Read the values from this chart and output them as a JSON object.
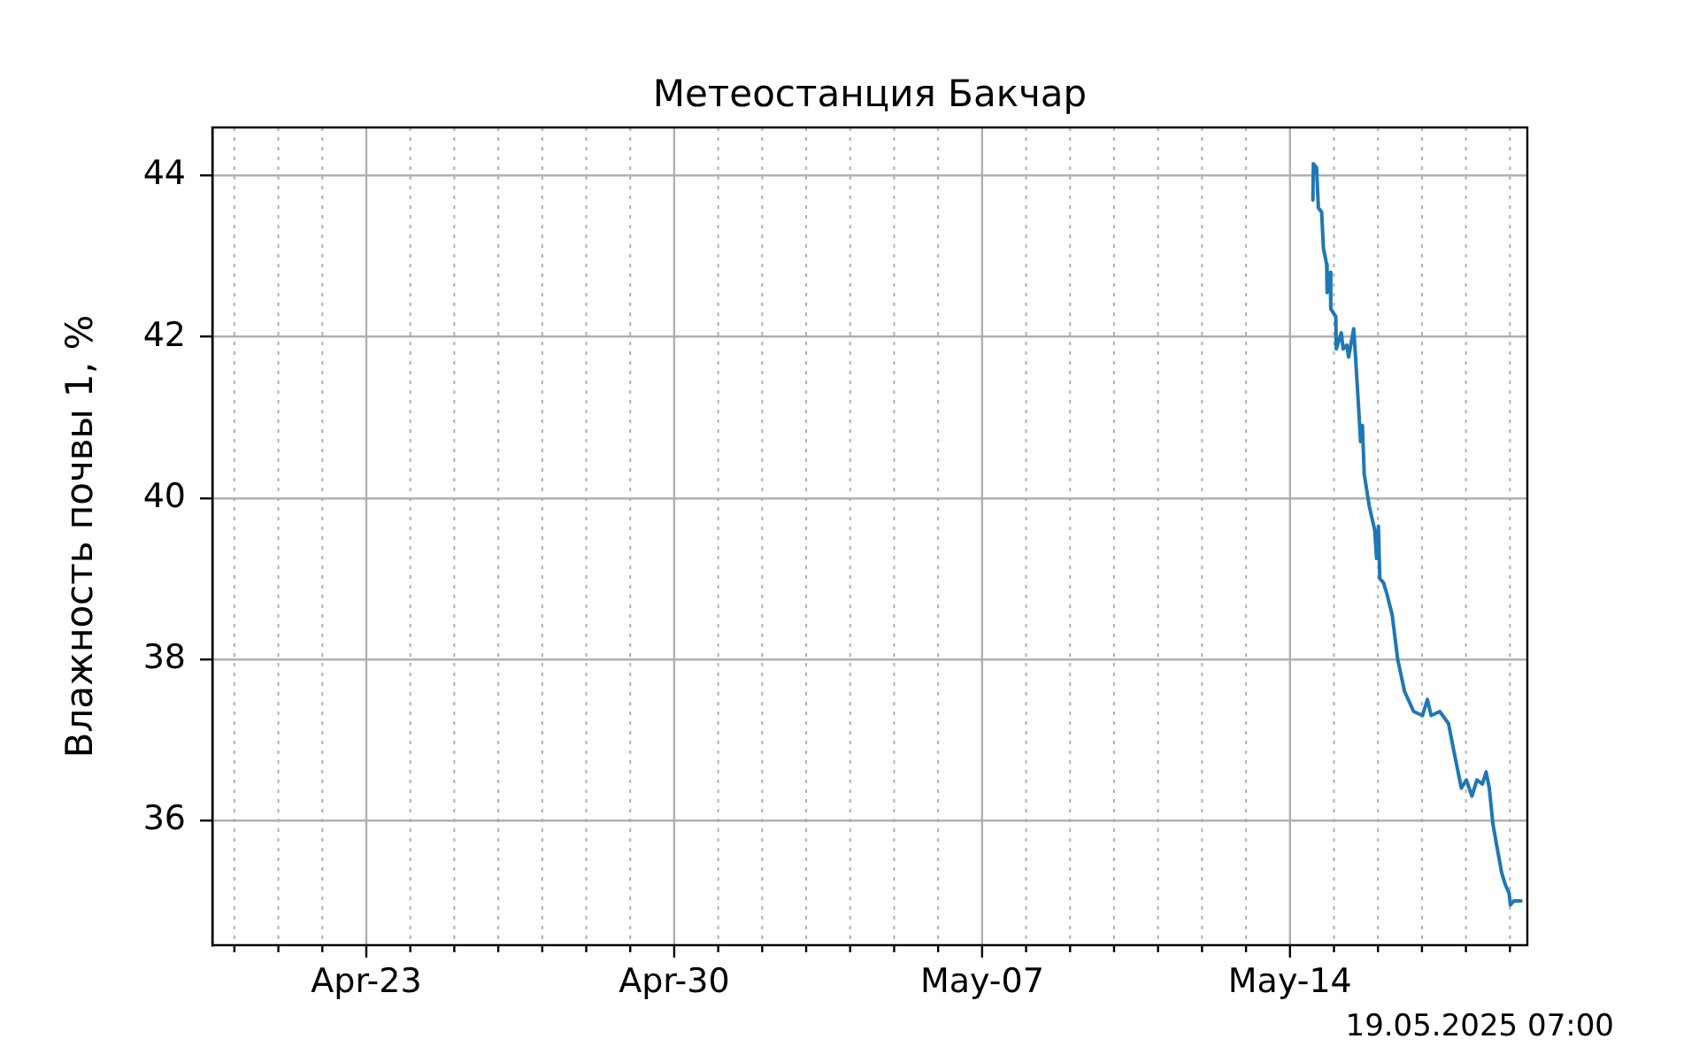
{
  "chart_data": {
    "type": "line",
    "title": "Метеостанция Бакчар",
    "ylabel": "Влажность почвы 1, %",
    "annotations": [
      "19.05.2025 07:00"
    ],
    "x": [
      "2025-05-14T12:30",
      "2025-05-14T12:45",
      "2025-05-14T14:30",
      "2025-05-14T15:30",
      "2025-05-14T17:15",
      "2025-05-14T18:15",
      "2025-05-14T20:00",
      "2025-05-14T20:15",
      "2025-05-14T22:00",
      "2025-05-14T22:15",
      "2025-05-15T01:00",
      "2025-05-15T01:15",
      "2025-05-15T04:00",
      "2025-05-15T05:00",
      "2025-05-15T07:00",
      "2025-05-15T08:00",
      "2025-05-15T10:45",
      "2025-05-15T11:30",
      "2025-05-15T13:30",
      "2025-05-15T14:30",
      "2025-05-15T15:30",
      "2025-05-15T16:30",
      "2025-05-15T19:15",
      "2025-05-15T22:15",
      "2025-05-15T23:15",
      "2025-05-16T00:15",
      "2025-05-16T01:00",
      "2025-05-16T03:00",
      "2025-05-16T05:00",
      "2025-05-16T07:45",
      "2025-05-16T10:45",
      "2025-05-16T14:30",
      "2025-05-16T19:30",
      "2025-05-17T00:15",
      "2025-05-17T03:00",
      "2025-05-17T05:00",
      "2025-05-17T09:45",
      "2025-05-17T14:30",
      "2025-05-17T17:30",
      "2025-05-17T21:30",
      "2025-05-18T00:15",
      "2025-05-18T03:15",
      "2025-05-18T06:00",
      "2025-05-18T09:00",
      "2025-05-18T11:00",
      "2025-05-18T12:45",
      "2025-05-18T14:45",
      "2025-05-18T17:30",
      "2025-05-18T19:30",
      "2025-05-18T21:30",
      "2025-05-18T23:30",
      "2025-05-19T00:15",
      "2025-05-19T02:15",
      "2025-05-19T06:00"
    ],
    "series": [
      {
        "color": "#1f77b4",
        "values": [
          43.7,
          44.15,
          44.1,
          43.6,
          43.55,
          43.1,
          42.9,
          42.55,
          42.8,
          42.35,
          42.25,
          41.85,
          42.05,
          41.85,
          41.9,
          41.75,
          42.1,
          41.85,
          41.1,
          40.7,
          40.9,
          40.3,
          39.9,
          39.6,
          39.25,
          39.65,
          39.0,
          38.95,
          38.8,
          38.55,
          38.0,
          37.6,
          37.35,
          37.3,
          37.5,
          37.3,
          37.35,
          37.2,
          36.85,
          36.4,
          36.5,
          36.3,
          36.5,
          36.45,
          36.6,
          36.4,
          35.95,
          35.6,
          35.35,
          35.2,
          35.1,
          34.95,
          35.0,
          35.0
        ]
      }
    ],
    "xlim": [
      "2025-04-19T12:00",
      "2025-05-19T09:30"
    ],
    "xticks": [
      {
        "value": "2025-04-20",
        "label": null
      },
      {
        "value": "2025-04-21",
        "label": null
      },
      {
        "value": "2025-04-22",
        "label": null
      },
      {
        "value": "2025-04-23",
        "label": "Apr-23"
      },
      {
        "value": "2025-04-24",
        "label": null
      },
      {
        "value": "2025-04-25",
        "label": null
      },
      {
        "value": "2025-04-26",
        "label": null
      },
      {
        "value": "2025-04-27",
        "label": null
      },
      {
        "value": "2025-04-28",
        "label": null
      },
      {
        "value": "2025-04-29",
        "label": null
      },
      {
        "value": "2025-04-30",
        "label": "Apr-30"
      },
      {
        "value": "2025-05-01",
        "label": null
      },
      {
        "value": "2025-05-02",
        "label": null
      },
      {
        "value": "2025-05-03",
        "label": null
      },
      {
        "value": "2025-05-04",
        "label": null
      },
      {
        "value": "2025-05-05",
        "label": null
      },
      {
        "value": "2025-05-06",
        "label": null
      },
      {
        "value": "2025-05-07",
        "label": "May-07"
      },
      {
        "value": "2025-05-08",
        "label": null
      },
      {
        "value": "2025-05-09",
        "label": null
      },
      {
        "value": "2025-05-10",
        "label": null
      },
      {
        "value": "2025-05-11",
        "label": null
      },
      {
        "value": "2025-05-12",
        "label": null
      },
      {
        "value": "2025-05-13",
        "label": null
      },
      {
        "value": "2025-05-14",
        "label": "May-14"
      },
      {
        "value": "2025-05-15",
        "label": null
      },
      {
        "value": "2025-05-16",
        "label": null
      },
      {
        "value": "2025-05-17",
        "label": null
      },
      {
        "value": "2025-05-18",
        "label": null
      },
      {
        "value": "2025-05-19",
        "label": null
      }
    ],
    "ylim": [
      34.45,
      44.6
    ],
    "yticks": [
      36,
      38,
      40,
      42,
      44
    ],
    "grid": true,
    "marker": "none",
    "line_style": "solid",
    "legend": false
  }
}
